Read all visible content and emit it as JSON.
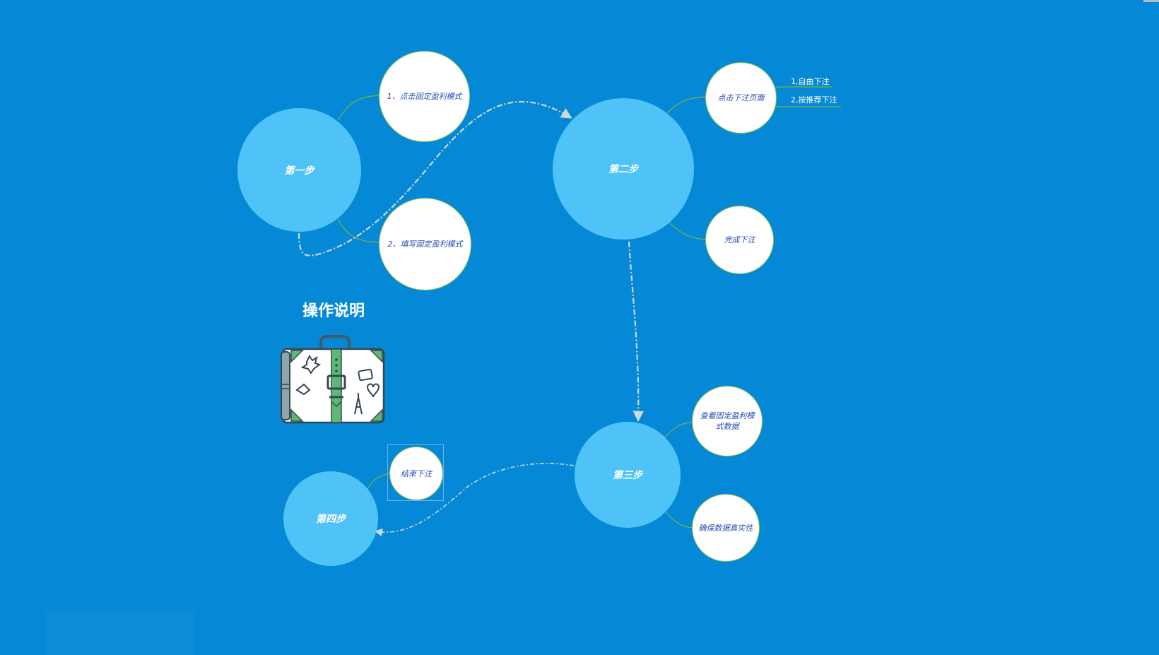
{
  "title": "操作说明",
  "steps": {
    "step1": "第一步",
    "step2": "第二步",
    "step3": "第三步",
    "step4": "第四步"
  },
  "details": {
    "s1a": "1、点击固定盈利模式",
    "s1b": "2、填写固定盈利模式",
    "s2a": "点击下注页面",
    "s2b": "完成下注",
    "s3a": "查看固定盈利模式数据",
    "s3b": "确保数据真实性",
    "s4a": "结束下注"
  },
  "leaves": {
    "l1": "1,自由下注",
    "l2": "2,按推荐下注"
  },
  "icons": {
    "suitcase": "suitcase-icon"
  },
  "colors": {
    "background": "#0589d6",
    "main_node": "#4fc3f7",
    "sub_node_border": "#8bc34a",
    "sub_node_text": "#2a4bb5"
  }
}
